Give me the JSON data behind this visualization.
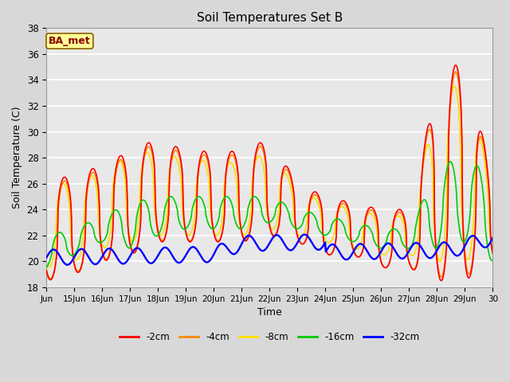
{
  "title": "Soil Temperatures Set B",
  "xlabel": "Time",
  "ylabel": "Soil Temperature (C)",
  "ylim": [
    18,
    38
  ],
  "xlim": [
    0,
    16
  ],
  "annotation": "BA_met",
  "series_colors": {
    "-2cm": "#ff0000",
    "-4cm": "#ff8800",
    "-8cm": "#ffdd00",
    "-16cm": "#00cc00",
    "-32cm": "#0000ff"
  },
  "xtick_labels": [
    "Jun",
    "15Jun",
    "16Jun",
    "17Jun",
    "18Jun",
    "19Jun",
    "20Jun",
    "21Jun",
    "22Jun",
    "23Jun",
    "24Jun",
    "25Jun",
    "26Jun",
    "27Jun",
    "28Jun",
    "29Jun",
    "30"
  ],
  "ytick_vals": [
    18,
    20,
    22,
    24,
    26,
    28,
    30,
    32,
    34,
    36,
    38
  ],
  "plot_bg_color": "#e8e8e8",
  "grid_color": "#ffffff",
  "linewidth": 1.2,
  "legend_linewidth": 2.0,
  "figsize": [
    6.4,
    4.8
  ],
  "dpi": 100
}
